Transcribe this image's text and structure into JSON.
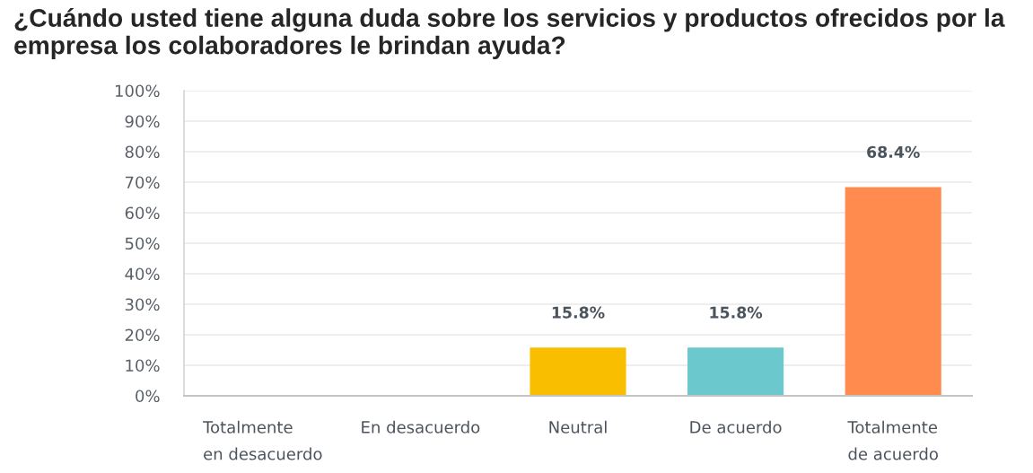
{
  "chart_data": {
    "type": "bar",
    "title": "¿Cuándo usted tiene alguna duda sobre los servicios y productos ofrecidos por la empresa los colaboradores le brindan ayuda?",
    "categories": [
      "Totalmente\nen desacuerdo",
      "En desacuerdo",
      "Neutral",
      "De acuerdo",
      "Totalmente\nde acuerdo"
    ],
    "values": [
      0,
      0,
      15.8,
      15.8,
      68.4
    ],
    "colors": [
      null,
      null,
      "#f9be00",
      "#6bc8cd",
      "#ff8b4f"
    ],
    "value_labels": [
      null,
      null,
      "15.8%",
      "15.8%",
      "68.4%"
    ],
    "ylim": [
      0,
      100
    ],
    "yticks": [
      {
        "value": 0,
        "label": "0%"
      },
      {
        "value": 10,
        "label": "10%"
      },
      {
        "value": 20,
        "label": "20%"
      },
      {
        "value": 30,
        "label": "30%"
      },
      {
        "value": 40,
        "label": "40%"
      },
      {
        "value": 50,
        "label": "50%"
      },
      {
        "value": 60,
        "label": "60%"
      },
      {
        "value": 70,
        "label": "70%"
      },
      {
        "value": 80,
        "label": "80%"
      },
      {
        "value": 90,
        "label": "90%"
      },
      {
        "value": 100,
        "label": "100%"
      }
    ],
    "grid": "y"
  }
}
